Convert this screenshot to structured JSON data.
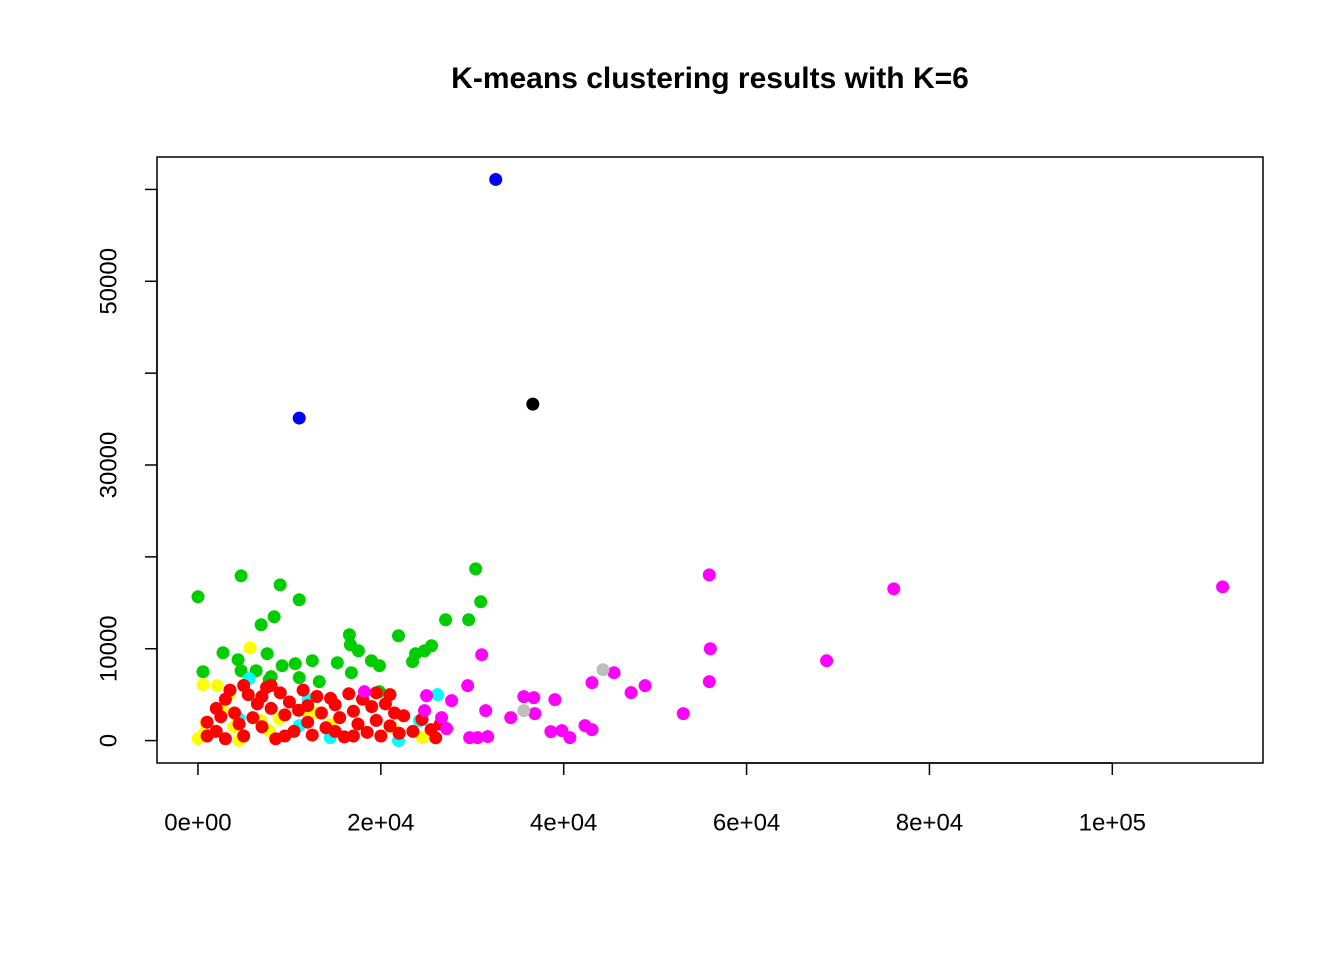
{
  "chart_data": {
    "type": "scatter",
    "title": "K-means clustering results with K=6",
    "xlim": [
      -4480,
      116480
    ],
    "ylim": [
      -2440,
      63530
    ],
    "xticks": [
      {
        "value": 0,
        "label": "0e+00"
      },
      {
        "value": 20000,
        "label": "2e+04"
      },
      {
        "value": 40000,
        "label": "4e+04"
      },
      {
        "value": 60000,
        "label": "6e+04"
      },
      {
        "value": 80000,
        "label": "8e+04"
      },
      {
        "value": 100000,
        "label": "1e+05"
      }
    ],
    "yticks": [
      0,
      10000,
      {
        "value": 20000,
        "label": null
      },
      30000,
      {
        "value": 40000,
        "label": null
      },
      50000,
      {
        "value": 60000,
        "label": null
      }
    ],
    "series": [
      {
        "color": "#00cd00",
        "x": [
          0,
          4715,
          8991,
          11075,
          30373,
          30921,
          29605,
          27083,
          6908,
          8333,
          16557,
          21930,
          16667,
          17544,
          25548,
          24781,
          23794,
          23465,
          18969,
          19846,
          15241,
          12500,
          10636,
          9211,
          7566,
          4386,
          2741,
          548,
          4715,
          6360,
          7785,
          11075,
          13268,
          16776,
          19846,
          8004
        ],
        "values": [
          15652,
          17935,
          16957,
          15326,
          18696,
          15109,
          13152,
          13152,
          12609,
          13478,
          11522,
          11413,
          10435,
          9783,
          10326,
          9783,
          9457,
          8587,
          8696,
          8152,
          8478,
          8696,
          8370,
          8152,
          9457,
          8804,
          9565,
          7500,
          7609,
          7609,
          6630,
          6848,
          6413,
          7391,
          5326,
          6957
        ]
      },
      {
        "color": "#ffff00",
        "x": [
          5702,
          548,
          2083,
          3399,
          0,
          658,
          4496,
          4934,
          6908,
          8882,
          11842,
          13048,
          14474,
          21272,
          24561,
          877,
          3947,
          2741,
          7785
        ],
        "values": [
          10109,
          6087,
          5978,
          5000,
          217,
          761,
          0,
          543,
          2174,
          2391,
          3261,
          3043,
          1739,
          1413,
          326,
          1957,
          1522,
          3152,
          1087
        ]
      },
      {
        "color": "#00ffff",
        "x": [
          26206,
          12061,
          5592,
          14474,
          21930,
          4496,
          11075,
          24232,
          6469
        ],
        "values": [
          5000,
          4457,
          6739,
          326,
          0,
          2391,
          1630,
          2174,
          4348
        ]
      },
      {
        "color": "#ff0000",
        "x": [
          1000,
          2000,
          3000,
          3500,
          4000,
          5000,
          5500,
          6000,
          6500,
          7000,
          7500,
          8000,
          8500,
          9000,
          9500,
          10000,
          10500,
          11000,
          11500,
          12000,
          12500,
          13000,
          13500,
          14000,
          15000,
          15500,
          16000,
          16500,
          17000,
          17500,
          18000,
          18500,
          19000,
          19500,
          20000,
          20500,
          21000,
          21500,
          22000,
          22500,
          23500,
          24500,
          25500,
          26000,
          26500,
          3000,
          2500,
          4500,
          7000,
          9500,
          12000,
          14500,
          17000,
          19500,
          8000,
          5000,
          2000,
          1000,
          15000,
          21000
        ],
        "values": [
          2000,
          1000,
          4500,
          5500,
          3000,
          500,
          5000,
          2500,
          4000,
          1500,
          5800,
          3500,
          200,
          5200,
          2800,
          4200,
          1000,
          3300,
          5500,
          2000,
          600,
          4800,
          3000,
          1400,
          3900,
          2500,
          400,
          5100,
          3200,
          1800,
          4500,
          900,
          3700,
          2200,
          500,
          4000,
          1600,
          3000,
          800,
          2700,
          1000,
          2300,
          1200,
          300,
          1800,
          200,
          2600,
          1800,
          4800,
          500,
          3800,
          4600,
          500,
          5200,
          6000,
          6000,
          3500,
          500,
          1000,
          5000
        ]
      },
      {
        "color": "#ff00ff",
        "x": [
          55921,
          76096,
          112061,
          56031,
          68750,
          55921,
          45504,
          48904,
          47368,
          43092,
          53070,
          39035,
          36732,
          35636,
          36842,
          34211,
          31469,
          31031,
          29496,
          27741,
          25000,
          24781,
          26645,
          27193,
          29715,
          31689,
          38596,
          39803,
          40680,
          42325,
          43092,
          18202,
          30592
        ],
        "values": [
          18043,
          16522,
          16739,
          10000,
          8696,
          6413,
          7391,
          5978,
          5217,
          6304,
          2935,
          4457,
          4674,
          4783,
          2935,
          2500,
          3261,
          9348,
          5978,
          4348,
          4891,
          3261,
          2500,
          1304,
          326,
          435,
          978,
          1087,
          326,
          1630,
          1196,
          5326,
          326
        ]
      },
      {
        "color": "#bebebe",
        "x": [
          44298,
          35636
        ],
        "values": [
          7717,
          3261
        ]
      },
      {
        "color": "#0000ff",
        "x": [
          32566,
          11075
        ],
        "values": [
          61087,
          35109
        ]
      },
      {
        "color": "#000000",
        "x": [
          36623
        ],
        "values": [
          36630
        ]
      }
    ]
  }
}
